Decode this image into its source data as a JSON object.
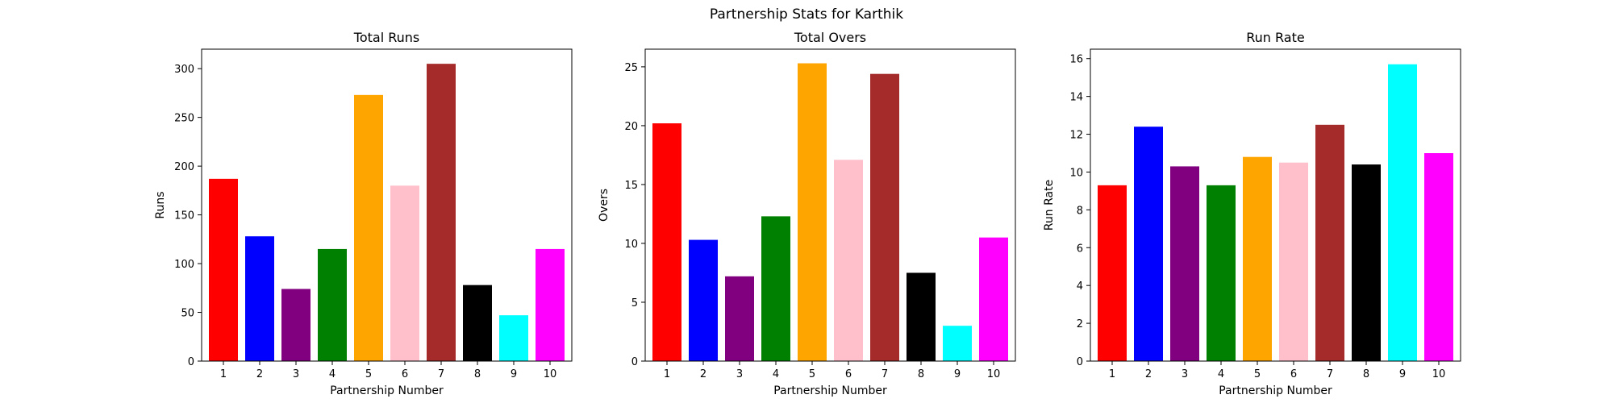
{
  "figure": {
    "title": "Partnership Stats for Karthik"
  },
  "chart_data": [
    {
      "type": "bar",
      "title": "Total Runs",
      "xlabel": "Partnership Number",
      "ylabel": "Runs",
      "categories": [
        "1",
        "2",
        "3",
        "4",
        "5",
        "6",
        "7",
        "8",
        "9",
        "10"
      ],
      "values": [
        187,
        128,
        74,
        115,
        273,
        180,
        305,
        78,
        47,
        115
      ],
      "colors": [
        "#ff0000",
        "#0000ff",
        "#800080",
        "#008000",
        "#ffa500",
        "#ffc0cb",
        "#a52a2a",
        "#000000",
        "#00ffff",
        "#ff00ff"
      ],
      "ylim": [
        0,
        320
      ],
      "yticks": [
        0,
        50,
        100,
        150,
        200,
        250,
        300
      ],
      "grid": false
    },
    {
      "type": "bar",
      "title": "Total Overs",
      "xlabel": "Partnership Number",
      "ylabel": "Overs",
      "categories": [
        "1",
        "2",
        "3",
        "4",
        "5",
        "6",
        "7",
        "8",
        "9",
        "10"
      ],
      "values": [
        20.2,
        10.3,
        7.2,
        12.3,
        25.3,
        17.1,
        24.4,
        7.5,
        3.0,
        10.5
      ],
      "colors": [
        "#ff0000",
        "#0000ff",
        "#800080",
        "#008000",
        "#ffa500",
        "#ffc0cb",
        "#a52a2a",
        "#000000",
        "#00ffff",
        "#ff00ff"
      ],
      "ylim": [
        0,
        26.5
      ],
      "yticks": [
        0,
        5,
        10,
        15,
        20,
        25
      ],
      "grid": false
    },
    {
      "type": "bar",
      "title": "Run Rate",
      "xlabel": "Partnership Number",
      "ylabel": "Run Rate",
      "categories": [
        "1",
        "2",
        "3",
        "4",
        "5",
        "6",
        "7",
        "8",
        "9",
        "10"
      ],
      "values": [
        9.3,
        12.4,
        10.3,
        9.3,
        10.8,
        10.5,
        12.5,
        10.4,
        15.7,
        11.0
      ],
      "colors": [
        "#ff0000",
        "#0000ff",
        "#800080",
        "#008000",
        "#ffa500",
        "#ffc0cb",
        "#a52a2a",
        "#000000",
        "#00ffff",
        "#ff00ff"
      ],
      "ylim": [
        0,
        16.5
      ],
      "yticks": [
        0,
        2,
        4,
        6,
        8,
        10,
        12,
        14,
        16
      ],
      "grid": false
    }
  ]
}
